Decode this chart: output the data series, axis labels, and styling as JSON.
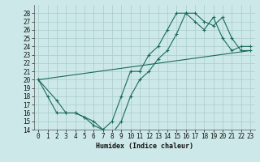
{
  "title": "",
  "xlabel": "Humidex (Indice chaleur)",
  "ylabel": "",
  "bg_color": "#cde8e8",
  "grid_color": "#aacccc",
  "line_color": "#1a6b5a",
  "xlim": [
    -0.5,
    23.5
  ],
  "ylim": [
    14,
    29
  ],
  "xticks": [
    0,
    1,
    2,
    3,
    4,
    5,
    6,
    7,
    8,
    9,
    10,
    11,
    12,
    13,
    14,
    15,
    16,
    17,
    18,
    19,
    20,
    21,
    22,
    23
  ],
  "yticks": [
    14,
    15,
    16,
    17,
    18,
    19,
    20,
    21,
    22,
    23,
    24,
    25,
    26,
    27,
    28
  ],
  "series1_x": [
    0,
    1,
    2,
    3,
    4,
    5,
    6,
    7,
    8,
    9,
    10,
    11,
    12,
    13,
    14,
    15,
    16,
    17,
    18,
    19,
    20,
    21,
    22,
    23
  ],
  "series1_y": [
    20,
    18,
    16,
    16,
    16,
    15.5,
    14.5,
    14,
    15,
    18,
    21,
    21,
    23,
    24,
    26,
    28,
    28,
    27,
    26,
    27.5,
    25,
    23.5,
    24,
    24
  ],
  "series2_x": [
    0,
    2,
    3,
    4,
    5,
    6,
    7,
    8,
    9,
    10,
    11,
    12,
    13,
    14,
    15,
    16,
    17,
    18,
    19,
    20,
    21,
    22,
    23
  ],
  "series2_y": [
    20,
    17.5,
    16,
    16,
    15.5,
    15,
    14,
    13.5,
    15,
    18,
    20,
    21,
    22.5,
    23.5,
    25.5,
    28,
    28,
    27,
    26.5,
    27.5,
    25,
    23.5,
    23.5
  ],
  "series3_x": [
    0,
    23
  ],
  "series3_y": [
    20,
    23.5
  ]
}
